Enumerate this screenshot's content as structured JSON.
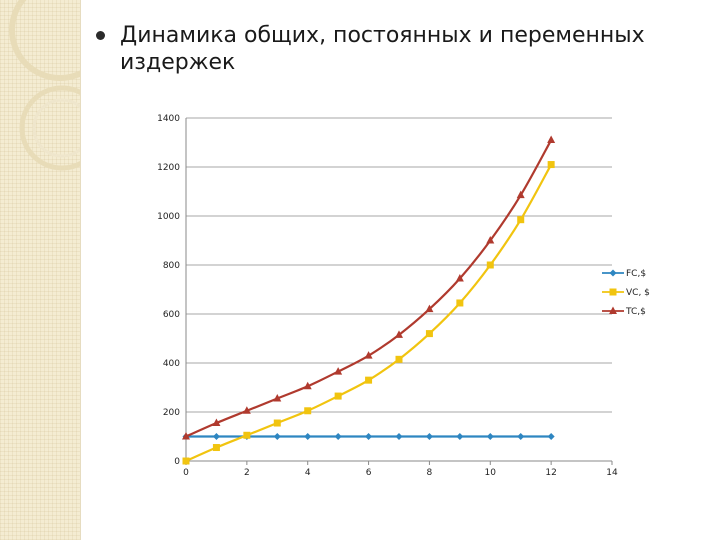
{
  "title": "Динамика общих, постоянных и переменных издержек",
  "chart_data": {
    "type": "line",
    "title": "",
    "xlabel": "",
    "ylabel": "",
    "xlim": [
      0,
      14
    ],
    "ylim": [
      0,
      1400
    ],
    "x_ticks": [
      0,
      2,
      4,
      6,
      8,
      10,
      12,
      14
    ],
    "y_ticks": [
      0,
      200,
      400,
      600,
      800,
      1000,
      1200,
      1400
    ],
    "grid": "horizontal",
    "legend_position": "right",
    "x": [
      0,
      1,
      2,
      3,
      4,
      5,
      6,
      7,
      8,
      9,
      10,
      11,
      12
    ],
    "series": [
      {
        "name": "FC,$",
        "color": "#2e86c1",
        "marker": "diamond",
        "values": [
          100,
          100,
          100,
          100,
          100,
          100,
          100,
          100,
          100,
          100,
          100,
          100,
          100
        ]
      },
      {
        "name": "VC, $",
        "color": "#f1c40f",
        "marker": "square",
        "values": [
          0,
          55,
          105,
          155,
          205,
          265,
          330,
          415,
          520,
          645,
          800,
          985,
          1210
        ]
      },
      {
        "name": "TC,$",
        "color": "#b03a2e",
        "marker": "triangle",
        "values": [
          100,
          155,
          205,
          255,
          305,
          365,
          430,
          515,
          620,
          745,
          900,
          1085,
          1310
        ]
      }
    ]
  }
}
